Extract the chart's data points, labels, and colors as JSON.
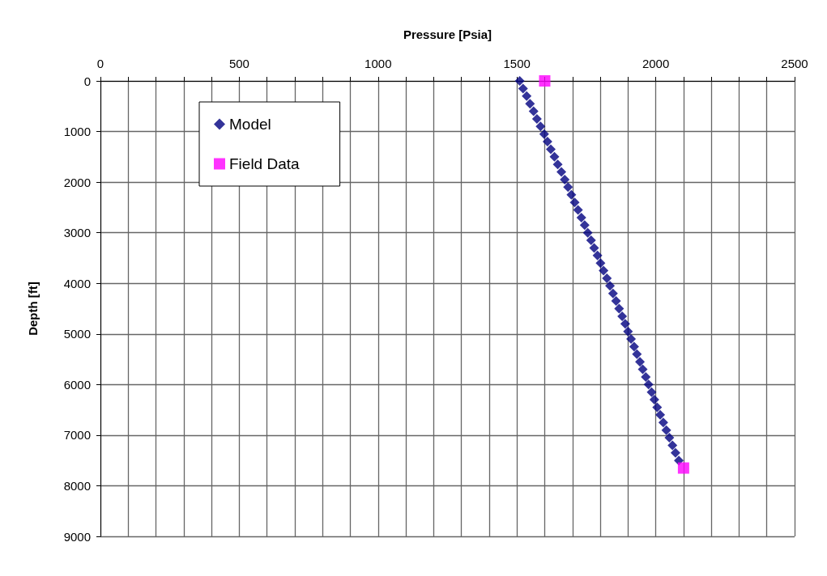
{
  "chart_data": {
    "type": "scatter",
    "xlabel": "Pressure [Psia]",
    "ylabel": "Depth [ft]",
    "xlim": [
      0,
      2500
    ],
    "ylim": [
      9000,
      0
    ],
    "xticks": [
      0,
      {
        "value": 100,
        "label": null
      },
      {
        "value": 200,
        "label": null
      },
      {
        "value": 300,
        "label": null
      },
      {
        "value": 400,
        "label": null
      },
      500,
      {
        "value": 600,
        "label": null
      },
      {
        "value": 700,
        "label": null
      },
      {
        "value": 800,
        "label": null
      },
      {
        "value": 900,
        "label": null
      },
      1000,
      {
        "value": 1100,
        "label": null
      },
      {
        "value": 1200,
        "label": null
      },
      {
        "value": 1300,
        "label": null
      },
      {
        "value": 1400,
        "label": null
      },
      1500,
      {
        "value": 1600,
        "label": null
      },
      {
        "value": 1700,
        "label": null
      },
      {
        "value": 1800,
        "label": null
      },
      {
        "value": 1900,
        "label": null
      },
      2000,
      {
        "value": 2100,
        "label": null
      },
      {
        "value": 2200,
        "label": null
      },
      {
        "value": 2300,
        "label": null
      },
      {
        "value": 2400,
        "label": null
      },
      2500
    ],
    "yticks": [
      0,
      1000,
      2000,
      3000,
      4000,
      5000,
      6000,
      7000,
      8000,
      9000
    ],
    "grid": true,
    "legend": "top left",
    "series": [
      {
        "name": "Model",
        "color": "#000080",
        "marker": "diamond",
        "x": [
          1510,
          1522,
          1535,
          1547,
          1560,
          1572,
          1585,
          1598,
          1610,
          1622,
          1635,
          1647,
          1660,
          1672,
          1684,
          1696,
          1708,
          1720,
          1732,
          1744,
          1755,
          1767,
          1778,
          1790,
          1801,
          1812,
          1824,
          1835,
          1846,
          1857,
          1868,
          1879,
          1890,
          1900,
          1911,
          1922,
          1932,
          1943,
          1953,
          1964,
          1974,
          1985,
          1995,
          2005,
          2016,
          2027,
          2038,
          2049,
          2060,
          2071,
          2083
        ],
        "values": [
          0,
          150,
          300,
          450,
          600,
          750,
          900,
          1050,
          1200,
          1350,
          1500,
          1650,
          1800,
          1950,
          2100,
          2250,
          2400,
          2550,
          2700,
          2850,
          3000,
          3150,
          3300,
          3450,
          3600,
          3750,
          3900,
          4050,
          4200,
          4350,
          4500,
          4650,
          4800,
          4950,
          5100,
          5250,
          5400,
          5550,
          5700,
          5850,
          6000,
          6150,
          6300,
          6450,
          6600,
          6750,
          6900,
          7050,
          7200,
          7350,
          7500
        ]
      },
      {
        "name": "Field Data",
        "color": "#ff00ff",
        "marker": "square",
        "x": [
          1600,
          2100
        ],
        "values": [
          0,
          7650
        ]
      }
    ]
  }
}
